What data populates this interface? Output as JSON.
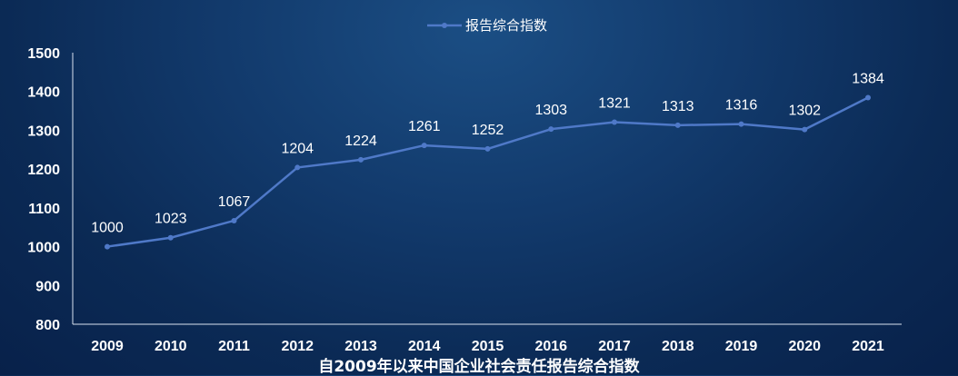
{
  "chart_data": {
    "type": "line",
    "categories": [
      "2009",
      "2010",
      "2011",
      "2012",
      "2013",
      "2014",
      "2015",
      "2016",
      "2017",
      "2018",
      "2019",
      "2020",
      "2021"
    ],
    "series": [
      {
        "name": "报告综合指数",
        "values": [
          1000,
          1023,
          1067,
          1204,
          1224,
          1261,
          1252,
          1303,
          1321,
          1313,
          1316,
          1302,
          1384
        ]
      }
    ],
    "title": "自2009年以来中国企业社会责任报告综合指数",
    "ylim": [
      800,
      1500
    ],
    "yticks": [
      800,
      900,
      1000,
      1100,
      1200,
      1300,
      1400,
      1500
    ],
    "grid": false,
    "legend_position": "top-center",
    "line_color": "#4f79c8",
    "axis_color": "#d9e2ef"
  }
}
